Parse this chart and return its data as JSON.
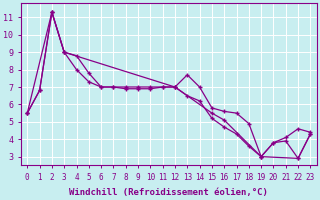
{
  "xlabel": "Windchill (Refroidissement éolien,°C)",
  "x_ticks": [
    0,
    1,
    2,
    3,
    4,
    5,
    6,
    7,
    8,
    9,
    10,
    11,
    12,
    13,
    14,
    15,
    16,
    17,
    18,
    19,
    20,
    21,
    22,
    23
  ],
  "y_ticks": [
    3,
    4,
    5,
    6,
    7,
    8,
    9,
    10,
    11
  ],
  "xlim": [
    -0.5,
    23.5
  ],
  "ylim": [
    2.5,
    11.8
  ],
  "bg_color": "#c8eef0",
  "line_color": "#880088",
  "grid_color": "#ffffff",
  "series1_x": [
    0,
    1,
    2,
    3,
    4,
    5,
    6,
    7,
    8,
    9,
    10,
    11,
    12,
    13,
    14,
    15,
    16,
    17,
    18,
    19,
    20,
    21,
    22,
    23
  ],
  "series1_y": [
    5.5,
    6.8,
    11.3,
    9.0,
    8.8,
    7.8,
    7.0,
    7.0,
    6.9,
    6.9,
    6.9,
    7.0,
    7.0,
    7.7,
    7.0,
    5.8,
    5.6,
    5.5,
    4.9,
    3.0,
    3.8,
    4.1,
    4.6,
    4.4
  ],
  "series2_x": [
    0,
    1,
    2,
    3,
    4,
    5,
    6,
    7,
    8,
    9,
    10,
    11,
    12,
    13,
    14,
    15,
    16,
    17,
    18,
    19,
    20,
    21,
    22,
    23
  ],
  "series2_y": [
    5.5,
    6.8,
    11.3,
    9.0,
    8.0,
    7.3,
    7.0,
    7.0,
    7.0,
    7.0,
    7.0,
    7.0,
    7.0,
    6.5,
    6.2,
    5.2,
    4.7,
    4.3,
    3.6,
    3.0,
    3.8,
    3.9,
    2.9,
    4.3
  ],
  "series3_x": [
    0,
    2,
    3,
    12,
    15,
    16,
    19,
    22,
    23
  ],
  "series3_y": [
    5.5,
    11.3,
    9.0,
    7.0,
    5.5,
    5.1,
    3.0,
    2.9,
    4.3
  ],
  "tick_fontsize": 5.5,
  "label_fontsize": 6.5
}
